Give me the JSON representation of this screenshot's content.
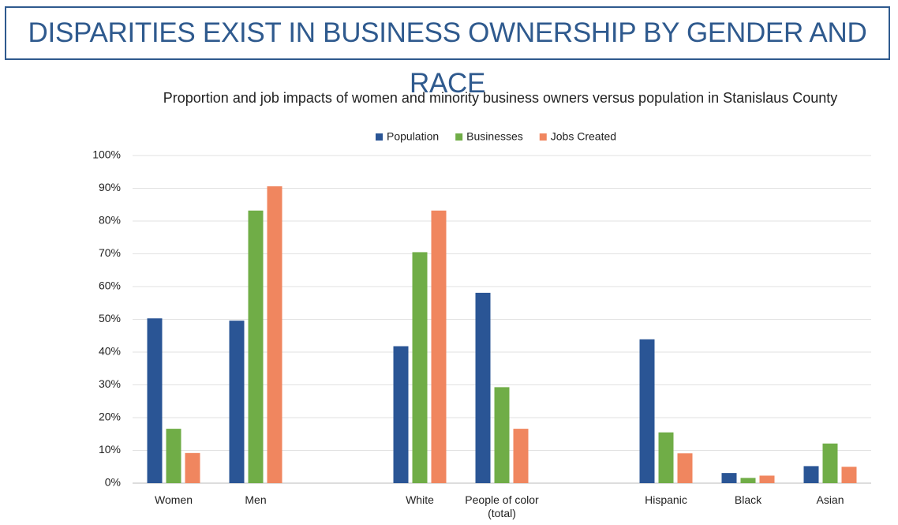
{
  "header": {
    "title": "DISPARITIES EXIST IN BUSINESS OWNERSHIP BY GENDER AND RACE"
  },
  "chart_data": {
    "type": "bar",
    "title": "Proportion and job impacts of women and minority business owners versus population in Stanislaus County",
    "categories": [
      "Women",
      "Men",
      null,
      "White",
      "People of color (total)",
      null,
      "Hispanic",
      "Black",
      "Asian"
    ],
    "series": [
      {
        "name": "Population",
        "color": "#2a5595",
        "values": [
          50.3,
          49.6,
          null,
          41.8,
          58.1,
          null,
          43.9,
          3.1,
          5.2
        ]
      },
      {
        "name": "Businesses",
        "color": "#70ad47",
        "values": [
          16.6,
          83.2,
          null,
          70.5,
          29.3,
          null,
          15.5,
          1.6,
          12.1
        ]
      },
      {
        "name": "Jobs Created",
        "color": "#f0865f",
        "values": [
          9.2,
          90.6,
          null,
          83.2,
          16.6,
          null,
          9.1,
          2.3,
          5.0
        ]
      }
    ],
    "ylim": [
      0,
      100
    ],
    "yticks": [
      {
        "value": 0,
        "label": "0%"
      },
      {
        "value": 10,
        "label": "10%"
      },
      {
        "value": 20,
        "label": "20%"
      },
      {
        "value": 30,
        "label": "30%"
      },
      {
        "value": 40,
        "label": "40%"
      },
      {
        "value": 50,
        "label": "50%"
      },
      {
        "value": 60,
        "label": "60%"
      },
      {
        "value": 70,
        "label": "70%"
      },
      {
        "value": 80,
        "label": "80%"
      },
      {
        "value": 90,
        "label": "90%"
      },
      {
        "value": 100,
        "label": "100%"
      }
    ],
    "grid": true,
    "legend": "top"
  }
}
